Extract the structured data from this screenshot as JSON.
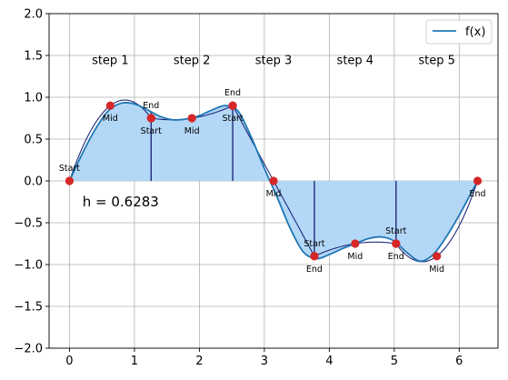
{
  "chart_data": {
    "type": "line",
    "xlim": [
      -0.314,
      6.597
    ],
    "ylim": [
      -2.0,
      2.0
    ],
    "grid": true,
    "legend_position": "top-right",
    "xticks": [
      0,
      1,
      2,
      3,
      4,
      5,
      6
    ],
    "yticks": [
      -2.0,
      -1.5,
      -1.0,
      -0.5,
      0.0,
      0.5,
      1.0,
      1.5,
      2.0
    ],
    "xtick_labels": [
      "0",
      "1",
      "2",
      "3",
      "4",
      "5",
      "6"
    ],
    "ytick_labels": [
      "−2.0",
      "−1.5",
      "−1.0",
      "−0.5",
      "0.0",
      "0.5",
      "1.0",
      "1.5",
      "2.0"
    ],
    "series": [
      {
        "name": "f(x)",
        "x": [
          0,
          0.2,
          0.4,
          0.6,
          0.8,
          1.0,
          1.2,
          1.4,
          1.6,
          1.8,
          2.0,
          2.2,
          2.4,
          2.6,
          2.8,
          3.0,
          3.2,
          3.4,
          3.6,
          3.8,
          4.0,
          4.2,
          4.4,
          4.6,
          4.8,
          5.0,
          5.2,
          5.4,
          5.6,
          5.8,
          6.0,
          6.2,
          6.283
        ],
        "y": [
          0.0,
          0.33,
          0.62,
          0.84,
          0.93,
          0.92,
          0.85,
          0.77,
          0.73,
          0.74,
          0.78,
          0.85,
          0.9,
          0.83,
          0.52,
          0.15,
          -0.2,
          -0.57,
          -0.85,
          -0.93,
          -0.88,
          -0.81,
          -0.75,
          -0.69,
          -0.67,
          -0.72,
          -0.86,
          -0.96,
          -0.88,
          -0.67,
          -0.41,
          -0.12,
          0.0
        ],
        "color": "#1f77b4"
      }
    ],
    "simpson_points": [
      {
        "x": 0.0,
        "y": 0.0,
        "label": "Start"
      },
      {
        "x": 0.628,
        "y": 0.9,
        "label": "Mid"
      },
      {
        "x": 1.257,
        "y": 0.75,
        "label": "End"
      },
      {
        "x": 1.257,
        "y": 0.75,
        "label": "Start"
      },
      {
        "x": 1.885,
        "y": 0.75,
        "label": "Mid"
      },
      {
        "x": 2.513,
        "y": 0.9,
        "label": "End"
      },
      {
        "x": 2.513,
        "y": 0.9,
        "label": "Start"
      },
      {
        "x": 3.142,
        "y": 0.0,
        "label": "Mid"
      },
      {
        "x": 3.77,
        "y": -0.9,
        "label": "End"
      },
      {
        "x": 3.77,
        "y": -0.9,
        "label": "Start"
      },
      {
        "x": 4.398,
        "y": -0.75,
        "label": "Mid"
      },
      {
        "x": 5.027,
        "y": -0.75,
        "label": "End"
      },
      {
        "x": 5.027,
        "y": -0.75,
        "label": "Start"
      },
      {
        "x": 5.655,
        "y": -0.9,
        "label": "Mid"
      },
      {
        "x": 6.283,
        "y": 0.0,
        "label": "End"
      }
    ],
    "step_boundaries": [
      1.257,
      2.513,
      3.77,
      5.027
    ],
    "step_labels": [
      {
        "text": "step 1",
        "x": 0.628,
        "y": 1.45
      },
      {
        "text": "step 2",
        "x": 1.885,
        "y": 1.45
      },
      {
        "text": "step 3",
        "x": 3.142,
        "y": 1.45
      },
      {
        "text": "step 4",
        "x": 4.398,
        "y": 1.45
      },
      {
        "text": "step 5",
        "x": 5.655,
        "y": 1.45
      }
    ],
    "annotation": {
      "text": "h = 0.6283",
      "x": 0.2,
      "y": -0.25
    },
    "colors": {
      "fill": "#b3d7f6",
      "curve": "#1f77b4",
      "parabola": "#1f2a7a",
      "point": "#d62728",
      "grid": "#b0b0b0"
    }
  }
}
